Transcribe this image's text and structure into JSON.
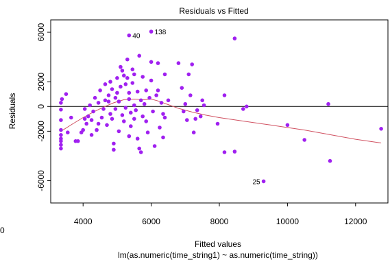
{
  "chart_data": {
    "type": "scatter",
    "title": "Residuals vs Fitted",
    "xlabel": "Fitted values",
    "ylabel": "Residuals",
    "subtitle": "lm(as.numeric(time_string1) ~ as.numeric(time_string))",
    "edge_text": "0",
    "xlim": [
      3050,
      12950
    ],
    "ylim": [
      -7800,
      7000
    ],
    "x_ticks": [
      4000,
      6000,
      8000,
      10000,
      12000
    ],
    "y_ticks": [
      -6000,
      -2000,
      0,
      2000,
      6000
    ],
    "grid": false,
    "colors": {
      "points": "#a020f0",
      "smooth": "#d05060",
      "reference": "#000000"
    },
    "reference_line_y": 0,
    "labeled_points": [
      {
        "label": "40",
        "x": 5350,
        "y": 5750
      },
      {
        "label": "138",
        "x": 6000,
        "y": 6050
      },
      {
        "label": "25",
        "x": 9300,
        "y": -6050
      }
    ],
    "points": [
      {
        "x": 3350,
        "y": -3400
      },
      {
        "x": 3350,
        "y": -3100
      },
      {
        "x": 3350,
        "y": -2800
      },
      {
        "x": 3350,
        "y": -2600
      },
      {
        "x": 3350,
        "y": -2300
      },
      {
        "x": 3350,
        "y": -1900
      },
      {
        "x": 3350,
        "y": -1100
      },
      {
        "x": 3350,
        "y": -250
      },
      {
        "x": 3350,
        "y": 300
      },
      {
        "x": 3380,
        "y": 600
      },
      {
        "x": 3500,
        "y": 1000
      },
      {
        "x": 3550,
        "y": -2100
      },
      {
        "x": 3650,
        "y": -900
      },
      {
        "x": 3780,
        "y": -2800
      },
      {
        "x": 3850,
        "y": -2800
      },
      {
        "x": 3950,
        "y": -2100
      },
      {
        "x": 4000,
        "y": -1900
      },
      {
        "x": 4050,
        "y": -1000
      },
      {
        "x": 4050,
        "y": -200
      },
      {
        "x": 4100,
        "y": -1400
      },
      {
        "x": 4150,
        "y": -800
      },
      {
        "x": 4200,
        "y": 100
      },
      {
        "x": 4250,
        "y": -1100
      },
      {
        "x": 4250,
        "y": -2300
      },
      {
        "x": 4300,
        "y": -400
      },
      {
        "x": 4350,
        "y": 700
      },
      {
        "x": 4400,
        "y": -1900
      },
      {
        "x": 4450,
        "y": -1400
      },
      {
        "x": 4450,
        "y": 300
      },
      {
        "x": 4500,
        "y": 1300
      },
      {
        "x": 4550,
        "y": -900
      },
      {
        "x": 4600,
        "y": -200
      },
      {
        "x": 4650,
        "y": 500
      },
      {
        "x": 4650,
        "y": 1800
      },
      {
        "x": 4700,
        "y": -1500
      },
      {
        "x": 4750,
        "y": 400
      },
      {
        "x": 4750,
        "y": 900
      },
      {
        "x": 4800,
        "y": -600
      },
      {
        "x": 4800,
        "y": 2000
      },
      {
        "x": 4850,
        "y": 1400
      },
      {
        "x": 4850,
        "y": -1000
      },
      {
        "x": 4900,
        "y": -3000
      },
      {
        "x": 4900,
        "y": -3500
      },
      {
        "x": 4950,
        "y": -200
      },
      {
        "x": 4950,
        "y": 700
      },
      {
        "x": 5000,
        "y": 2300
      },
      {
        "x": 5000,
        "y": 1100
      },
      {
        "x": 5050,
        "y": -2000
      },
      {
        "x": 5050,
        "y": 400
      },
      {
        "x": 5100,
        "y": 3200
      },
      {
        "x": 5100,
        "y": 1600
      },
      {
        "x": 5150,
        "y": -700
      },
      {
        "x": 5150,
        "y": 2900
      },
      {
        "x": 5200,
        "y": 2500
      },
      {
        "x": 5200,
        "y": -1200
      },
      {
        "x": 5250,
        "y": 1800
      },
      {
        "x": 5250,
        "y": -100
      },
      {
        "x": 5300,
        "y": 3800
      },
      {
        "x": 5300,
        "y": 2300
      },
      {
        "x": 5350,
        "y": 1100
      },
      {
        "x": 5350,
        "y": -2400
      },
      {
        "x": 5350,
        "y": 600
      },
      {
        "x": 5400,
        "y": -500
      },
      {
        "x": 5400,
        "y": -1600
      },
      {
        "x": 5450,
        "y": 1900
      },
      {
        "x": 5450,
        "y": 3000
      },
      {
        "x": 5500,
        "y": -1000
      },
      {
        "x": 5500,
        "y": 2600
      },
      {
        "x": 5500,
        "y": 100
      },
      {
        "x": 5550,
        "y": -300
      },
      {
        "x": 5600,
        "y": 1200
      },
      {
        "x": 5600,
        "y": -2600
      },
      {
        "x": 5650,
        "y": -3400
      },
      {
        "x": 5650,
        "y": 4100
      },
      {
        "x": 5700,
        "y": 500
      },
      {
        "x": 5700,
        "y": -3700
      },
      {
        "x": 5750,
        "y": 2400
      },
      {
        "x": 5750,
        "y": -800
      },
      {
        "x": 5800,
        "y": 200
      },
      {
        "x": 5850,
        "y": -1200
      },
      {
        "x": 5850,
        "y": 1300
      },
      {
        "x": 5900,
        "y": -2100
      },
      {
        "x": 5950,
        "y": 700
      },
      {
        "x": 6000,
        "y": 3600
      },
      {
        "x": 6000,
        "y": 2100
      },
      {
        "x": 6050,
        "y": -400
      },
      {
        "x": 6100,
        "y": -3200
      },
      {
        "x": 6150,
        "y": 900
      },
      {
        "x": 6200,
        "y": 3500
      },
      {
        "x": 6200,
        "y": 1300
      },
      {
        "x": 6250,
        "y": -1700
      },
      {
        "x": 6300,
        "y": 300
      },
      {
        "x": 6350,
        "y": -600
      },
      {
        "x": 6350,
        "y": -2500
      },
      {
        "x": 6400,
        "y": 2600
      },
      {
        "x": 6400,
        "y": -900
      },
      {
        "x": 6500,
        "y": 500
      },
      {
        "x": 6800,
        "y": 3500
      },
      {
        "x": 6900,
        "y": 1500
      },
      {
        "x": 6950,
        "y": -400
      },
      {
        "x": 7000,
        "y": 200
      },
      {
        "x": 7050,
        "y": -1100
      },
      {
        "x": 7100,
        "y": 2600
      },
      {
        "x": 7150,
        "y": 900
      },
      {
        "x": 7200,
        "y": 3400
      },
      {
        "x": 7250,
        "y": -2100
      },
      {
        "x": 7300,
        "y": -1000
      },
      {
        "x": 7350,
        "y": -300
      },
      {
        "x": 7450,
        "y": -800
      },
      {
        "x": 7500,
        "y": 500
      },
      {
        "x": 7550,
        "y": 100
      },
      {
        "x": 7950,
        "y": -1400
      },
      {
        "x": 8150,
        "y": -3700
      },
      {
        "x": 8150,
        "y": 900
      },
      {
        "x": 8450,
        "y": -3650
      },
      {
        "x": 8450,
        "y": 5500
      },
      {
        "x": 8700,
        "y": -200
      },
      {
        "x": 8800,
        "y": 0
      },
      {
        "x": 10000,
        "y": -1500
      },
      {
        "x": 10500,
        "y": -2700
      },
      {
        "x": 11200,
        "y": 200
      },
      {
        "x": 11250,
        "y": -4400
      },
      {
        "x": 12750,
        "y": -1800
      }
    ],
    "smooth_line": [
      {
        "x": 3350,
        "y": -2000
      },
      {
        "x": 3700,
        "y": -1400
      },
      {
        "x": 4000,
        "y": -900
      },
      {
        "x": 4300,
        "y": -450
      },
      {
        "x": 4600,
        "y": -50
      },
      {
        "x": 4900,
        "y": 300
      },
      {
        "x": 5200,
        "y": 550
      },
      {
        "x": 5500,
        "y": 600
      },
      {
        "x": 5800,
        "y": 550
      },
      {
        "x": 6000,
        "y": 600
      },
      {
        "x": 6200,
        "y": 450
      },
      {
        "x": 6500,
        "y": 150
      },
      {
        "x": 6800,
        "y": -150
      },
      {
        "x": 7200,
        "y": -450
      },
      {
        "x": 7600,
        "y": -700
      },
      {
        "x": 8000,
        "y": -900
      },
      {
        "x": 8500,
        "y": -1100
      },
      {
        "x": 9000,
        "y": -1300
      },
      {
        "x": 9500,
        "y": -1500
      },
      {
        "x": 10000,
        "y": -1700
      },
      {
        "x": 10500,
        "y": -1900
      },
      {
        "x": 11000,
        "y": -2150
      },
      {
        "x": 11500,
        "y": -2400
      },
      {
        "x": 12000,
        "y": -2650
      },
      {
        "x": 12750,
        "y": -2950
      }
    ]
  }
}
